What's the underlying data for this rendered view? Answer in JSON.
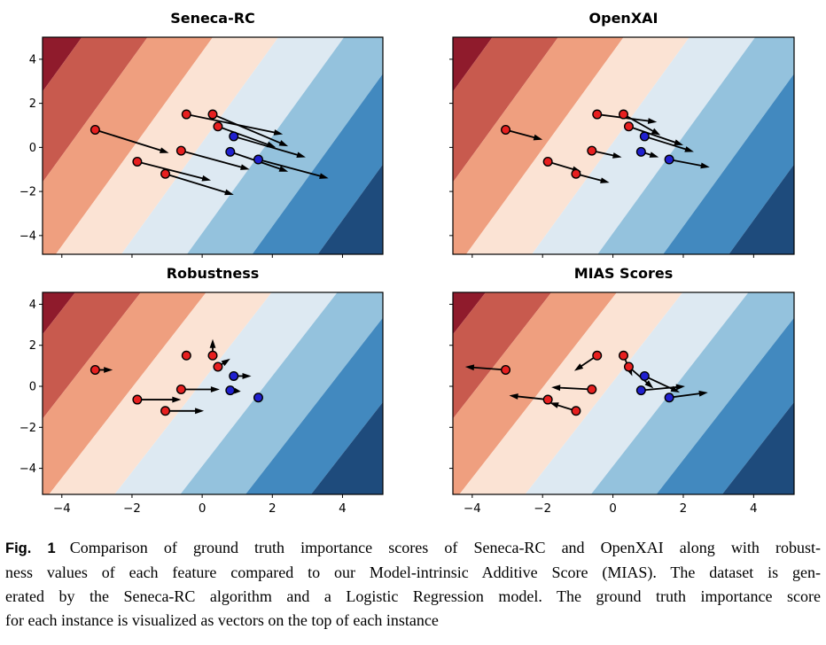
{
  "caption": {
    "label": "Fig. 1",
    "lines": [
      "Comparison of ground truth importance scores of Seneca-RC and OpenXAI along with robust-",
      "ness values of each feature compared to our Model-intrinsic Additive Score (MIAS). The dataset is gen-",
      "erated by the Seneca-RC algorithm and a Logistic Regression model. The ground truth importance score",
      "for each instance is visualized as vectors on the top of each instance"
    ]
  },
  "chart_data": {
    "type": "scatter",
    "subtype": "quiver-over-decision-contours",
    "xlim": [
      -4.55,
      5.15
    ],
    "x_ticks": [
      -4,
      -2,
      0,
      2,
      4
    ],
    "y_ticks": [
      4,
      2,
      0,
      -2,
      -4
    ],
    "background": {
      "description": "diagonal contourf bands of a linear (logistic regression) decision function, red = class red region (top-left) to blue = class blue region (bottom-right)",
      "colors": [
        "#8f1b2c",
        "#c85a4e",
        "#ef9f7f",
        "#fbe3d4",
        "#dde9f2",
        "#94c2dd",
        "#4289bf",
        "#1e4b7c"
      ],
      "boundaries_at_y0": [
        -5.7,
        -3.83,
        -1.97,
        -0.1,
        1.77,
        3.63,
        5.5
      ],
      "slope": 2.2
    },
    "classes": {
      "red": "#e71f1f",
      "blue": "#2020cf"
    },
    "marker_edge": "#000000",
    "arrow_color": "#000000",
    "points": [
      {
        "x": -3.05,
        "y": 0.8,
        "class": "red"
      },
      {
        "x": -1.85,
        "y": -0.65,
        "class": "red"
      },
      {
        "x": -1.05,
        "y": -1.2,
        "class": "red"
      },
      {
        "x": -0.6,
        "y": -0.15,
        "class": "red"
      },
      {
        "x": -0.45,
        "y": 1.5,
        "class": "red"
      },
      {
        "x": 0.3,
        "y": 1.5,
        "class": "red"
      },
      {
        "x": 0.45,
        "y": 0.95,
        "class": "red"
      },
      {
        "x": 0.9,
        "y": 0.5,
        "class": "blue"
      },
      {
        "x": 0.8,
        "y": -0.2,
        "class": "blue"
      },
      {
        "x": 1.6,
        "y": -0.55,
        "class": "blue"
      }
    ],
    "plots": [
      {
        "title": "Seneca-RC",
        "show_y_labels": true,
        "show_x_labels": false,
        "vector_ends": [
          [
            -0.95,
            -0.25
          ],
          [
            0.25,
            -1.5
          ],
          [
            0.9,
            -2.15
          ],
          [
            1.35,
            -1.0
          ],
          [
            2.3,
            0.6
          ],
          [
            2.45,
            0.05
          ],
          [
            2.1,
            0.0
          ],
          [
            2.95,
            -0.45
          ],
          [
            2.45,
            -1.1
          ],
          [
            3.6,
            -1.4
          ]
        ]
      },
      {
        "title": "OpenXAI",
        "show_y_labels": false,
        "show_x_labels": false,
        "vector_ends": [
          [
            -2.0,
            0.35
          ],
          [
            -0.9,
            -1.1
          ],
          [
            -0.1,
            -1.6
          ],
          [
            0.25,
            -0.45
          ],
          [
            1.25,
            1.15
          ],
          [
            1.35,
            0.55
          ],
          [
            2.0,
            0.1
          ],
          [
            2.3,
            -0.2
          ],
          [
            1.3,
            -0.45
          ],
          [
            2.75,
            -0.9
          ]
        ]
      },
      {
        "title": "Robustness",
        "show_y_labels": true,
        "show_x_labels": true,
        "vector_ends": [
          [
            -2.55,
            0.8
          ],
          [
            -0.6,
            -0.65
          ],
          [
            0.05,
            -1.2
          ],
          [
            0.5,
            -0.15
          ],
          null,
          [
            0.3,
            2.3
          ],
          [
            0.8,
            1.35
          ],
          [
            1.4,
            0.5
          ],
          [
            1.1,
            -0.25
          ],
          null
        ]
      },
      {
        "title": "MIAS Scores",
        "show_y_labels": false,
        "show_x_labels": true,
        "vector_ends": [
          [
            -4.2,
            0.95
          ],
          [
            -2.95,
            -0.45
          ],
          [
            -1.8,
            -0.8
          ],
          [
            -1.75,
            -0.05
          ],
          [
            -1.1,
            0.75
          ],
          [
            0.55,
            0.5
          ],
          [
            1.15,
            -0.1
          ],
          [
            1.9,
            -0.3
          ],
          [
            2.05,
            0.0
          ],
          [
            2.7,
            -0.3
          ]
        ]
      }
    ]
  }
}
